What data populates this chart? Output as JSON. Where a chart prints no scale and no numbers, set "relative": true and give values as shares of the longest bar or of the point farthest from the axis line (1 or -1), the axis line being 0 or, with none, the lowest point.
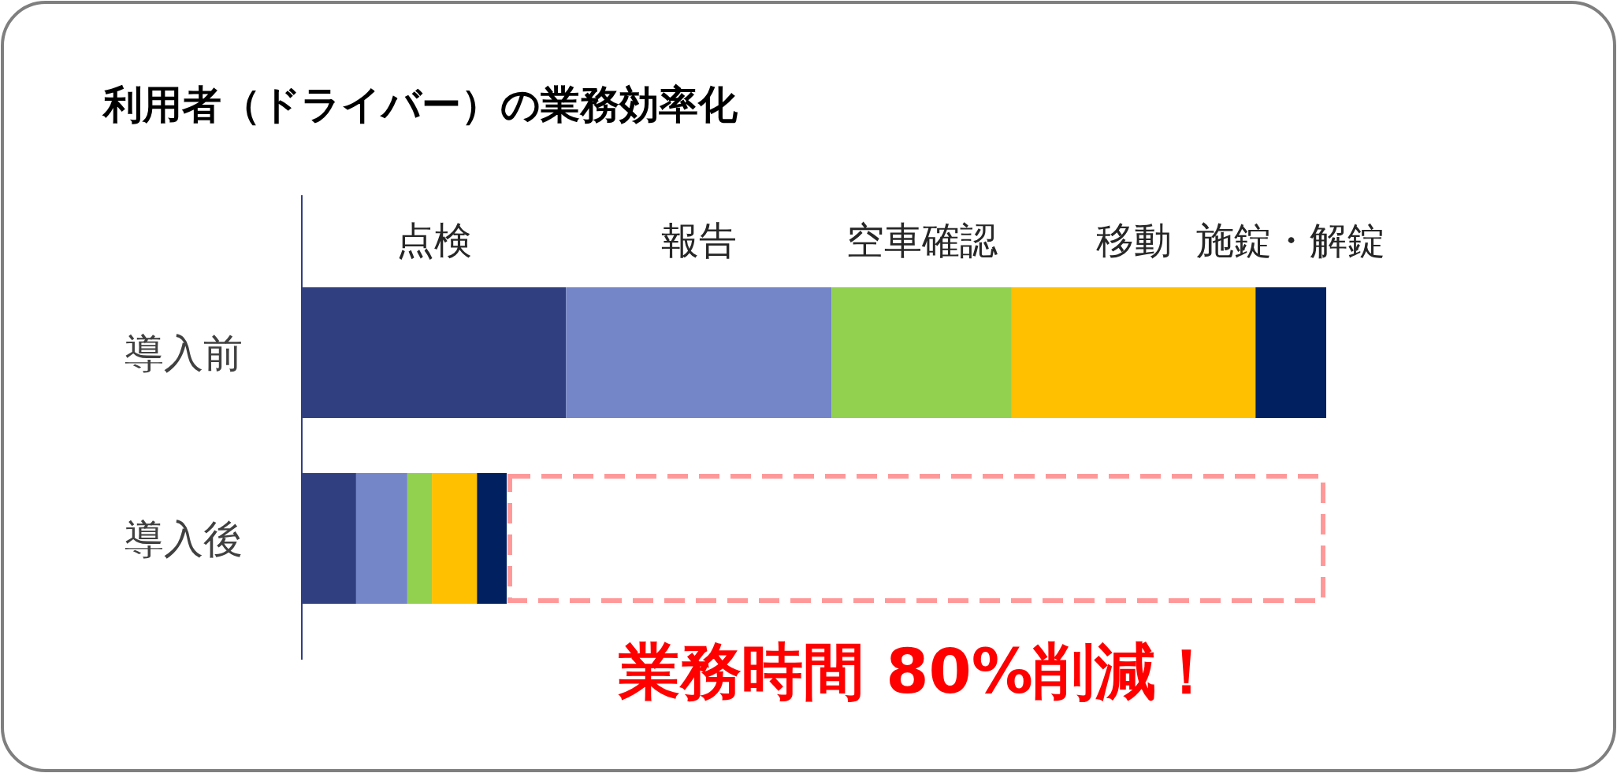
{
  "chart_data": {
    "type": "bar",
    "orientation": "horizontal",
    "stacked": true,
    "relative": true,
    "title": "利用者（ドライバー）の業務効率化",
    "categories": [
      "導入前",
      "導入後"
    ],
    "series": [
      {
        "name": "点検",
        "color": "#2f3f7f",
        "values": [
          0.258,
          0.053
        ]
      },
      {
        "name": "報告",
        "color": "#7485c8",
        "values": [
          0.259,
          0.05
        ]
      },
      {
        "name": "空車確認",
        "color": "#92d050",
        "values": [
          0.176,
          0.024
        ]
      },
      {
        "name": "移動",
        "color": "#ffc000",
        "values": [
          0.238,
          0.044
        ]
      },
      {
        "name": "施錠・解錠",
        "color": "#002060",
        "values": [
          0.069,
          0.029
        ]
      }
    ],
    "annotations": [
      "業務時間 80%削減！"
    ],
    "legend": false
  }
}
